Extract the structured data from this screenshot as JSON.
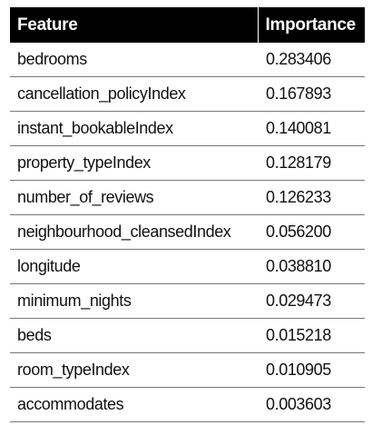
{
  "table": {
    "headers": [
      "Feature",
      "Importance"
    ],
    "rows": [
      [
        "bedrooms",
        "0.283406"
      ],
      [
        "cancellation_policyIndex",
        "0.167893"
      ],
      [
        "instant_bookableIndex",
        "0.140081"
      ],
      [
        "property_typeIndex",
        "0.128179"
      ],
      [
        "number_of_reviews",
        "0.126233"
      ],
      [
        "neighbourhood_cleansedIndex",
        "0.056200"
      ],
      [
        "longitude",
        "0.038810"
      ],
      [
        "minimum_nights",
        "0.029473"
      ],
      [
        "beds",
        "0.015218"
      ],
      [
        "room_typeIndex",
        "0.010905"
      ],
      [
        "accommodates",
        "0.003603"
      ]
    ]
  },
  "colors": {
    "header_background": "#000000",
    "header_text": "#ffffff",
    "row_divider": "#777777"
  }
}
